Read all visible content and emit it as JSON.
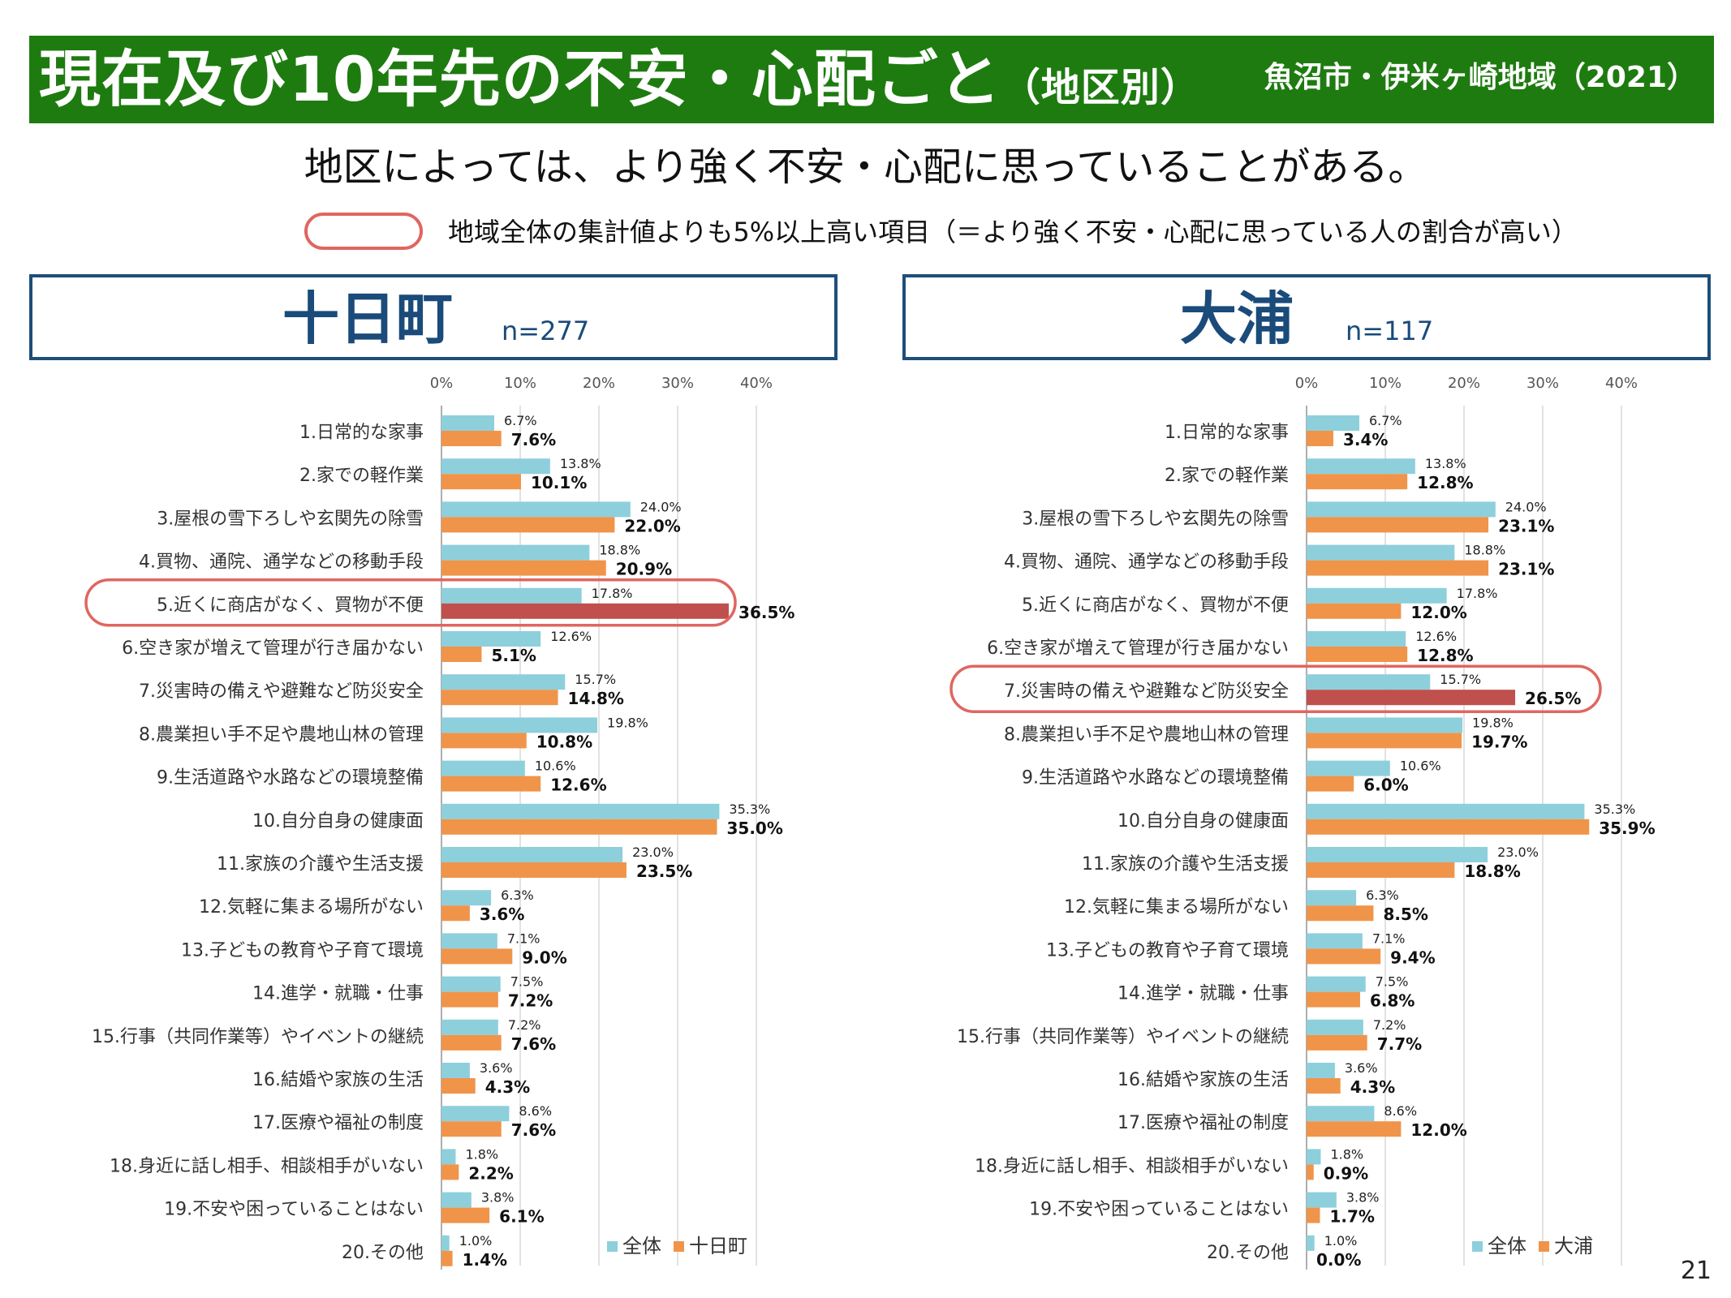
{
  "header": {
    "title": "現在及び10年先の不安・心配ごと",
    "title_sub": "（地区別）",
    "region": "魚沼市・伊米ヶ崎地域（2021）"
  },
  "subtitle": "地区によっては、より強く不安・心配に思っていることがある。",
  "legend_note": "地域全体の集計値よりも5%以上高い項目（＝より強く不安・心配に思っている人の割合が高い）",
  "colors": {
    "all": "#8ecfdc",
    "district": "#f0944a",
    "highlight": "#c0504d",
    "oval": "#e06660",
    "title_bg": "#1e7b10",
    "panel_border": "#1e4e7a"
  },
  "page_number": "21",
  "panels": [
    {
      "name": "十日町",
      "n": "n=277"
    },
    {
      "name": "大浦",
      "n": "n=117"
    }
  ],
  "chart_data": [
    {
      "type": "bar",
      "orientation": "horizontal",
      "xlim": [
        0,
        40
      ],
      "x_ticks": [
        "0%",
        "10%",
        "20%",
        "30%",
        "40%"
      ],
      "grid": true,
      "legend_position": "bottom-right",
      "categories": [
        "1.日常的な家事",
        "2.家での軽作業",
        "3.屋根の雪下ろしや玄関先の除雪",
        "4.買物、通院、通学などの移動手段",
        "5.近くに商店がなく、買物が不便",
        "6.空き家が増えて管理が行き届かない",
        "7.災害時の備えや避難など防災安全",
        "8.農業担い手不足や農地山林の管理",
        "9.生活道路や水路などの環境整備",
        "10.自分自身の健康面",
        "11.家族の介護や生活支援",
        "12.気軽に集まる場所がない",
        "13.子どもの教育や子育て環境",
        "14.進学・就職・仕事",
        "15.行事（共同作業等）やイベントの継続",
        "16.結婚や家族の生活",
        "17.医療や福祉の制度",
        "18.身近に話し相手、相談相手がいない",
        "19.不安や困っていることはない",
        "20.その他"
      ],
      "series": [
        {
          "name": "全体",
          "values": [
            6.7,
            13.8,
            24.0,
            18.8,
            17.8,
            12.6,
            15.7,
            19.8,
            10.6,
            35.3,
            23.0,
            6.3,
            7.1,
            7.5,
            7.2,
            3.6,
            8.6,
            1.8,
            3.8,
            1.0
          ]
        },
        {
          "name": "十日町",
          "values": [
            7.6,
            10.1,
            22.0,
            20.9,
            36.5,
            5.1,
            14.8,
            10.8,
            12.6,
            35.0,
            23.5,
            3.6,
            9.0,
            7.2,
            7.6,
            4.3,
            7.6,
            2.2,
            6.1,
            1.4
          ]
        }
      ],
      "highlighted_categories": [
        "5.近くに商店がなく、買物が不便"
      ]
    },
    {
      "type": "bar",
      "orientation": "horizontal",
      "xlim": [
        0,
        40
      ],
      "x_ticks": [
        "0%",
        "10%",
        "20%",
        "30%",
        "40%"
      ],
      "grid": true,
      "legend_position": "bottom-right",
      "categories": [
        "1.日常的な家事",
        "2.家での軽作業",
        "3.屋根の雪下ろしや玄関先の除雪",
        "4.買物、通院、通学などの移動手段",
        "5.近くに商店がなく、買物が不便",
        "6.空き家が増えて管理が行き届かない",
        "7.災害時の備えや避難など防災安全",
        "8.農業担い手不足や農地山林の管理",
        "9.生活道路や水路などの環境整備",
        "10.自分自身の健康面",
        "11.家族の介護や生活支援",
        "12.気軽に集まる場所がない",
        "13.子どもの教育や子育て環境",
        "14.進学・就職・仕事",
        "15.行事（共同作業等）やイベントの継続",
        "16.結婚や家族の生活",
        "17.医療や福祉の制度",
        "18.身近に話し相手、相談相手がいない",
        "19.不安や困っていることはない",
        "20.その他"
      ],
      "series": [
        {
          "name": "全体",
          "values": [
            6.7,
            13.8,
            24.0,
            18.8,
            17.8,
            12.6,
            15.7,
            19.8,
            10.6,
            35.3,
            23.0,
            6.3,
            7.1,
            7.5,
            7.2,
            3.6,
            8.6,
            1.8,
            3.8,
            1.0
          ]
        },
        {
          "name": "大浦",
          "values": [
            3.4,
            12.8,
            23.1,
            23.1,
            12.0,
            12.8,
            26.5,
            19.7,
            6.0,
            35.9,
            18.8,
            8.5,
            9.4,
            6.8,
            7.7,
            4.3,
            12.0,
            0.9,
            1.7,
            0.0
          ]
        }
      ],
      "highlighted_categories": [
        "7.災害時の備えや避難など防災安全"
      ]
    }
  ]
}
